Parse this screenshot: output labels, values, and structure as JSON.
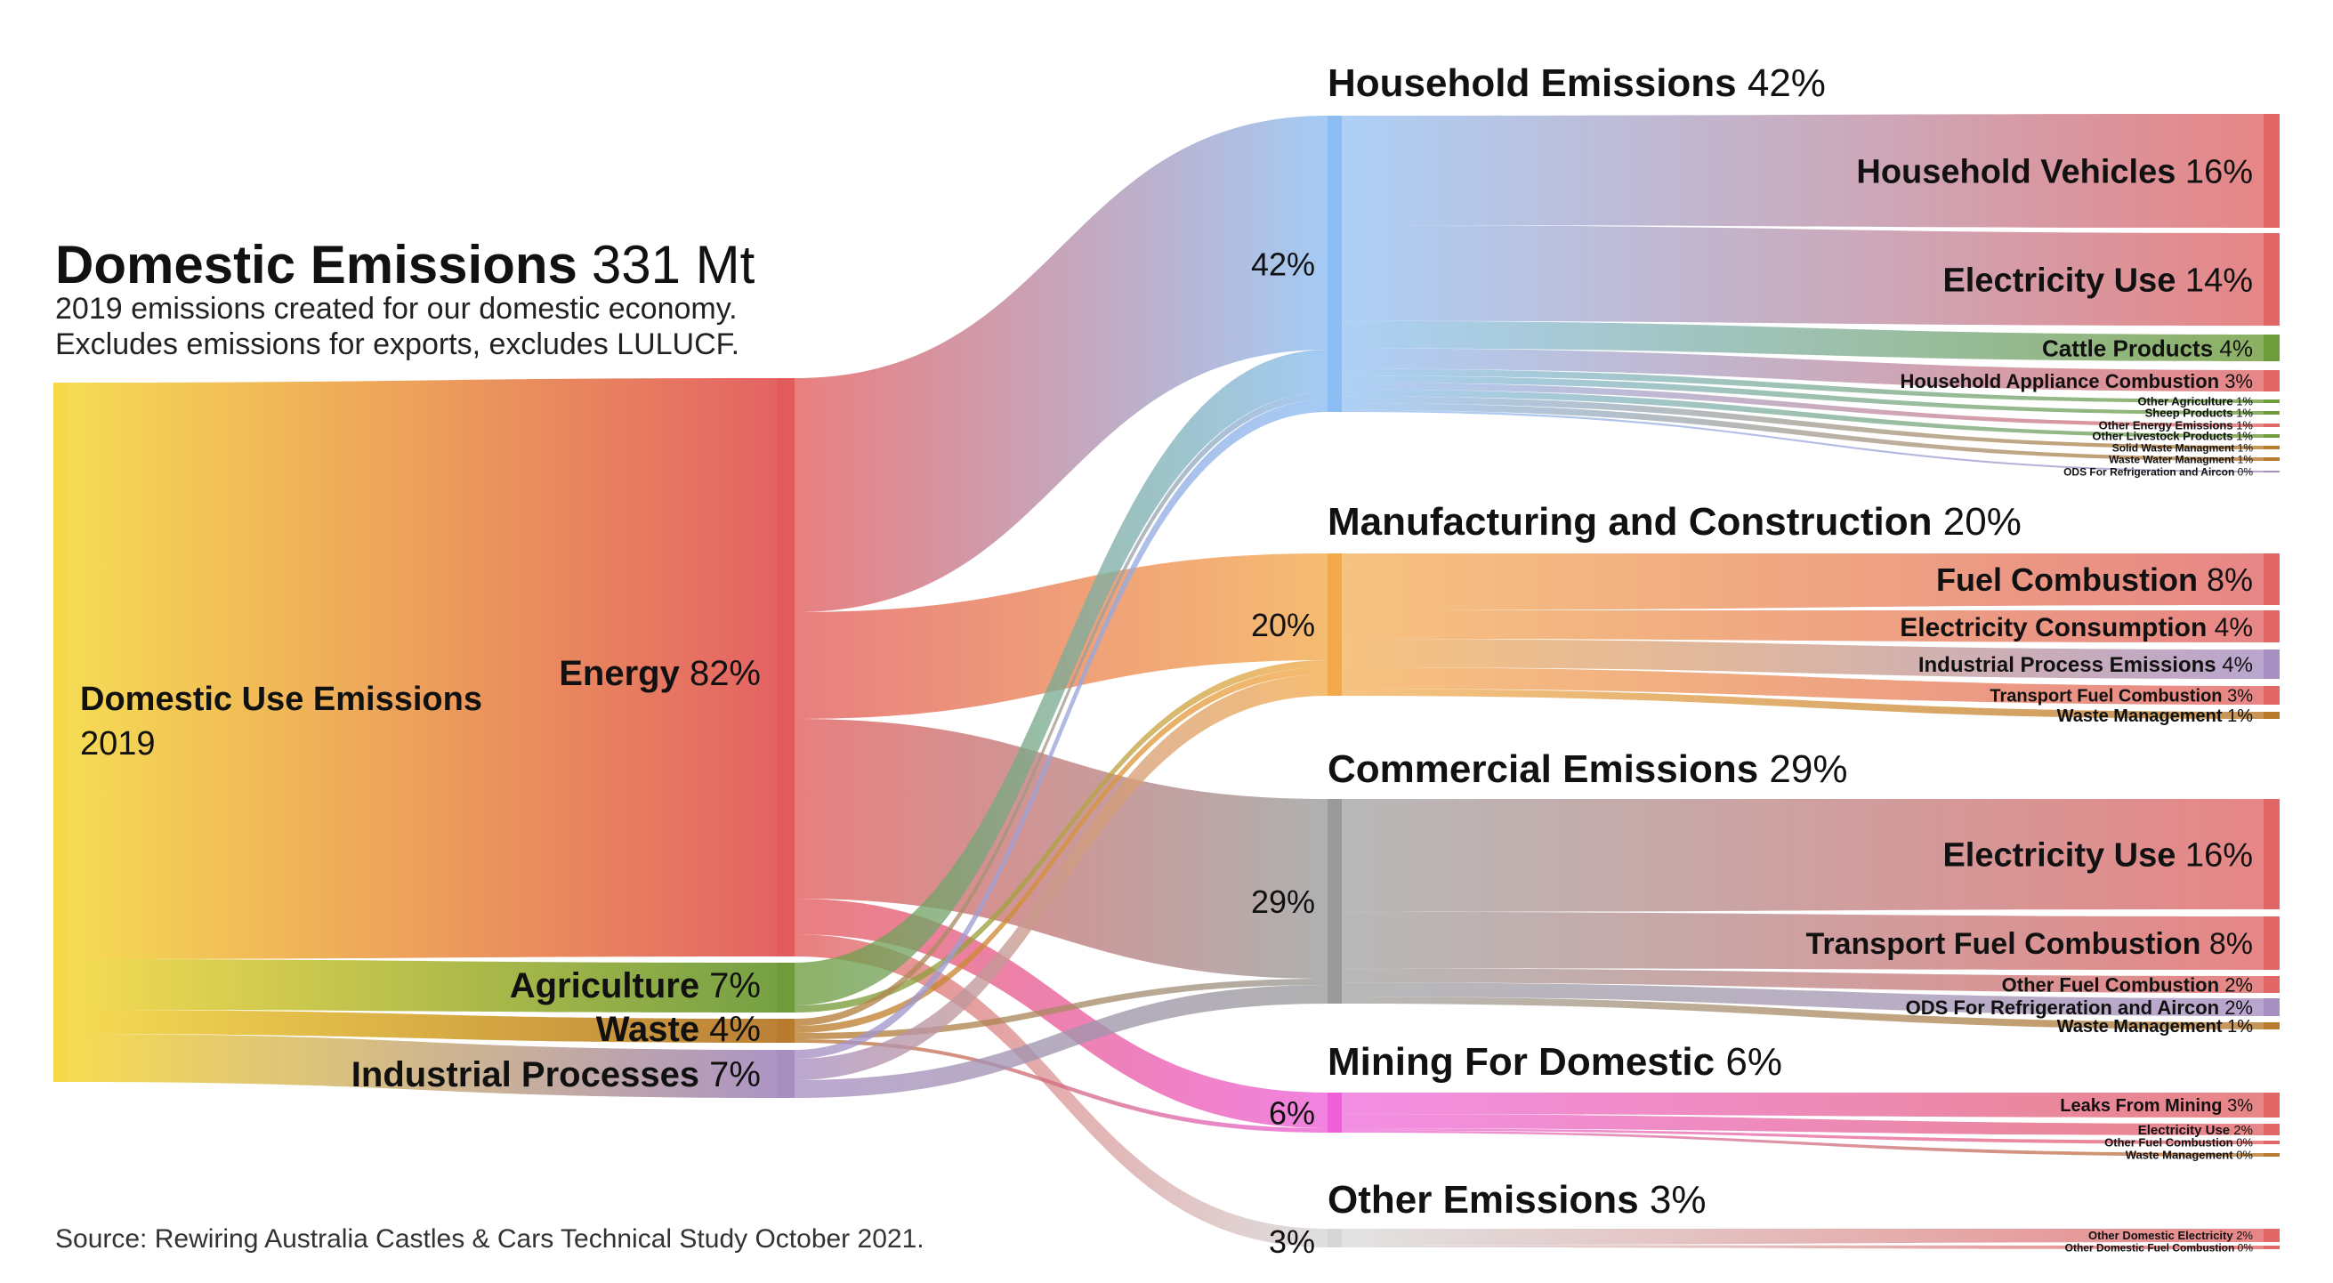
{
  "header": {
    "title_bold": "Domestic Emissions",
    "title_value": "331 Mt",
    "subtitle_1": "2019 emissions created for our domestic economy.",
    "subtitle_2": "Excludes emissions for exports, excludes LULUCF."
  },
  "source": "Source: Rewiring Australia Castles & Cars Technical Study October 2021.",
  "colors": {
    "root": "#f5d94a",
    "energy": "#e25b5b",
    "agriculture": "#6e9c3a",
    "waste": "#b87a2c",
    "industrial": "#a88fc2",
    "household": "#8bbcf2",
    "manufacturing": "#f3a94a",
    "commercial": "#9a9a9a",
    "mining": "#ee5fd8",
    "other": "#d6d6d6",
    "leaf_red": "#e16767"
  },
  "chart_data": {
    "type": "sankey",
    "title": "Domestic Emissions 331 Mt",
    "root": {
      "label_bold": "Domestic Use Emissions",
      "label_value": "2019"
    },
    "sources": [
      {
        "id": "energy",
        "name": "Energy",
        "value": "82%"
      },
      {
        "id": "agriculture",
        "name": "Agriculture",
        "value": "7%"
      },
      {
        "id": "waste",
        "name": "Waste",
        "value": "4%"
      },
      {
        "id": "industrial",
        "name": "Industrial Processes",
        "value": "7%"
      }
    ],
    "sectors": [
      {
        "id": "household",
        "name": "Household Emissions",
        "value": "42%",
        "subcategories": [
          {
            "name": "Household Vehicles",
            "value": "16%"
          },
          {
            "name": "Electricity Use",
            "value": "14%"
          },
          {
            "name": "Cattle Products",
            "value": "4%"
          },
          {
            "name": "Household Appliance Combustion",
            "value": "3%"
          },
          {
            "name": "Other Agriculture",
            "value": "1%"
          },
          {
            "name": "Sheep Products",
            "value": "1%"
          },
          {
            "name": "Other Energy Emissions",
            "value": "1%"
          },
          {
            "name": "Other Livestock Products",
            "value": "1%"
          },
          {
            "name": "Solid Waste Managment",
            "value": "1%"
          },
          {
            "name": "Waste Water Managment",
            "value": "1%"
          },
          {
            "name": "ODS For Refrigeration and Aircon",
            "value": "0%"
          }
        ]
      },
      {
        "id": "manufacturing",
        "name": "Manufacturing and Construction",
        "value": "20%",
        "subcategories": [
          {
            "name": "Fuel Combustion",
            "value": "8%"
          },
          {
            "name": "Electricity Consumption",
            "value": "4%"
          },
          {
            "name": "Industrial Process Emissions",
            "value": "4%"
          },
          {
            "name": "Transport Fuel Combustion",
            "value": "3%"
          },
          {
            "name": "Waste Management",
            "value": "1%"
          }
        ]
      },
      {
        "id": "commercial",
        "name": "Commercial Emissions",
        "value": "29%",
        "subcategories": [
          {
            "name": "Electricity Use",
            "value": "16%"
          },
          {
            "name": "Transport Fuel Combustion",
            "value": "8%"
          },
          {
            "name": "Other Fuel Combustion",
            "value": "2%"
          },
          {
            "name": "ODS For Refrigeration and Aircon",
            "value": "2%"
          },
          {
            "name": "Waste Management",
            "value": "1%"
          }
        ]
      },
      {
        "id": "mining",
        "name": "Mining For Domestic",
        "value": "6%",
        "subcategories": [
          {
            "name": "Leaks From Mining",
            "value": "3%"
          },
          {
            "name": "Electricity Use",
            "value": "2%"
          },
          {
            "name": "Other Fuel Combustion",
            "value": "0%"
          },
          {
            "name": "Waste Management",
            "value": "0%"
          }
        ]
      },
      {
        "id": "other",
        "name": "Other Emissions",
        "value": "3%",
        "subcategories": [
          {
            "name": "Other Domestic Electricity",
            "value": "2%"
          },
          {
            "name": "Other Domestic Fuel Combustion",
            "value": "0%"
          }
        ]
      }
    ]
  }
}
